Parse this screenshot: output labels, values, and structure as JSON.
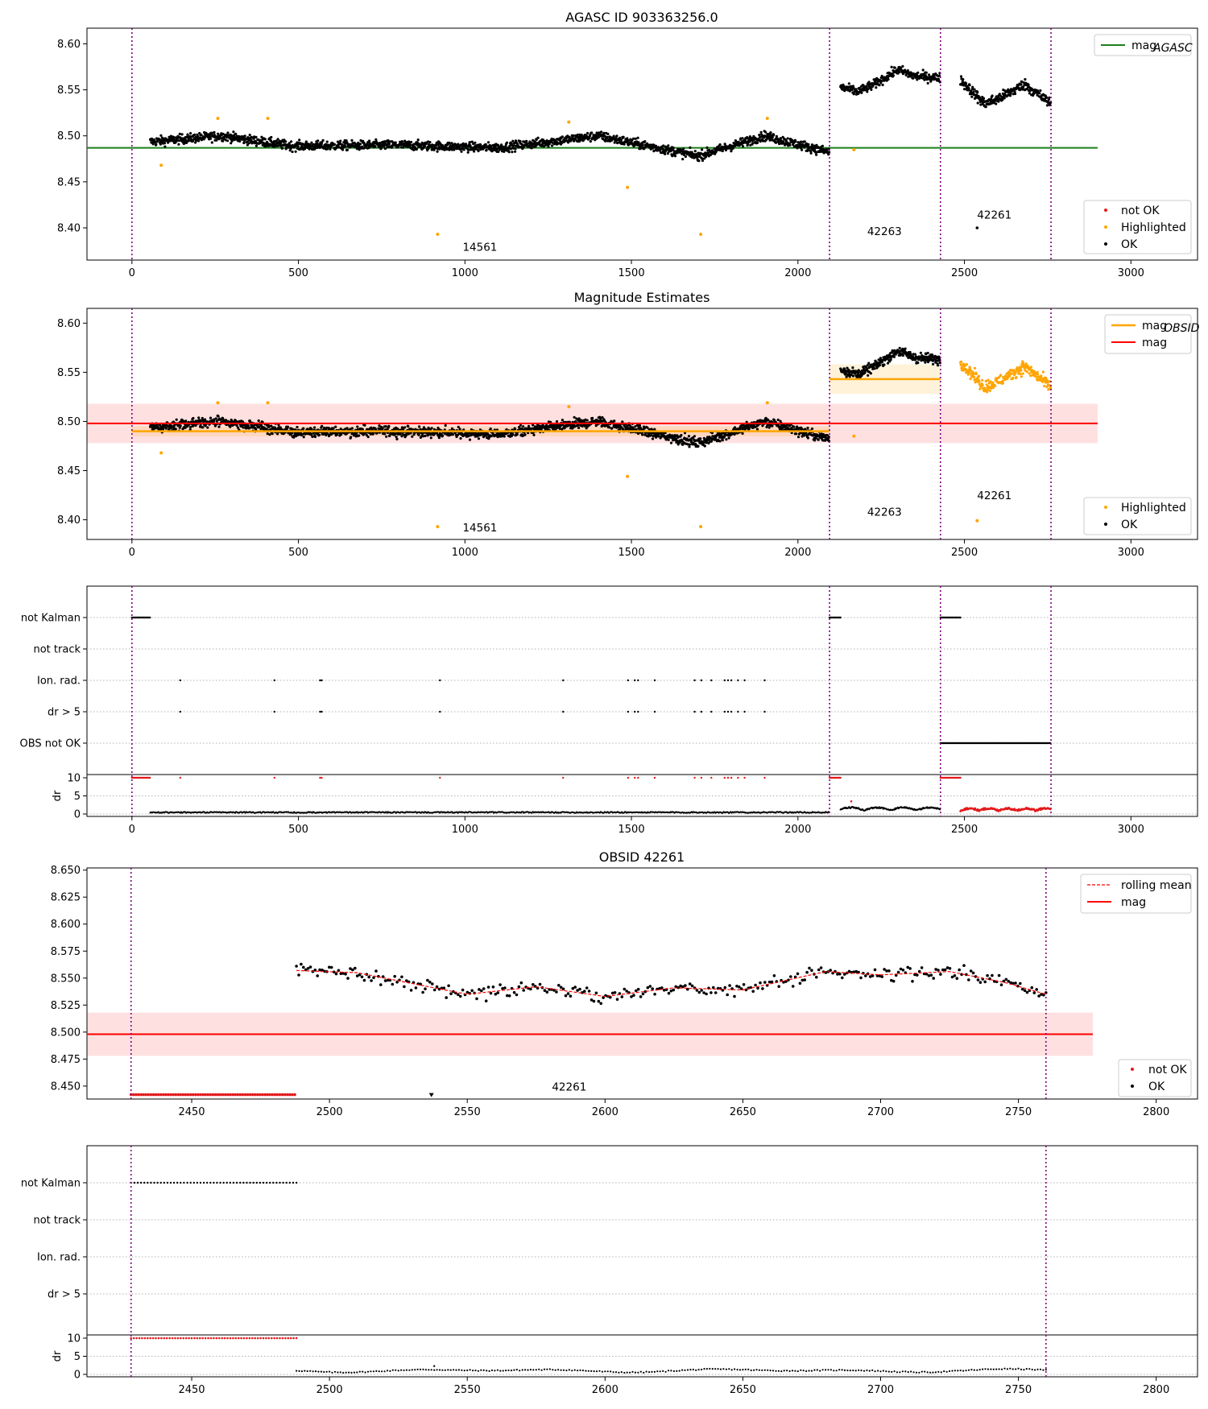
{
  "figure": {
    "panel1_title": "AGASC ID 903363256.0",
    "panel2_title": "Magnitude Estimates",
    "panel4_title": "OBSID 42261"
  },
  "colors": {
    "ok": "#000000",
    "not_ok": "#e31a1c",
    "highlighted": "#ffa500",
    "mag_agasc": "#1a7f1a",
    "mag": "#ff0000",
    "mag_obsid": "#ffa500",
    "obs_boundary": "#800080"
  },
  "chart_data": [
    {
      "type": "scatter",
      "title": "AGASC ID 903363256.0",
      "xlim": [
        -135,
        3200
      ],
      "ylim": [
        8.365,
        8.617
      ],
      "xticks": [
        0,
        500,
        1000,
        1500,
        2000,
        2500,
        3000
      ],
      "yticks": [
        8.4,
        8.45,
        8.5,
        8.55,
        8.6
      ],
      "ytick_labels": [
        "8.40",
        "8.45",
        "8.50",
        "8.55",
        "8.60"
      ],
      "obs_boundaries": [
        0,
        2095,
        2428,
        2760
      ],
      "obs_labels": [
        {
          "text": "14561",
          "x": 1045,
          "y": 8.375
        },
        {
          "text": "42263",
          "x": 2260,
          "y": 8.392
        },
        {
          "text": "42261",
          "x": 2590,
          "y": 8.41
        }
      ],
      "mag_agasc": {
        "value": 8.487,
        "x_range": [
          -135,
          2900
        ]
      },
      "segments": [
        {
          "x": [
            55,
            2095
          ],
          "waves": [
            [
              0.492,
              0
            ],
            [
              0.5,
              270
            ],
            [
              0.489,
              480
            ],
            [
              0.49,
              800
            ],
            [
              0.487,
              1100
            ],
            [
              0.5,
              1400
            ],
            [
              0.478,
              1700
            ],
            [
              0.5,
              1900
            ],
            [
              0.482,
              2095
            ]
          ],
          "scatter": 0.005
        },
        {
          "x": [
            2128,
            2428
          ],
          "waves": [
            [
              0.553,
              2128
            ],
            [
              0.548,
              2180
            ],
            [
              0.556,
              2230
            ],
            [
              0.572,
              2300
            ],
            [
              0.565,
              2350
            ],
            [
              0.563,
              2428
            ]
          ],
          "scatter": 0.005
        },
        {
          "x": [
            2488,
            2760
          ],
          "waves": [
            [
              0.561,
              2488
            ],
            [
              0.535,
              2560
            ],
            [
              0.54,
              2600
            ],
            [
              0.556,
              2680
            ],
            [
              0.535,
              2760
            ]
          ],
          "scatter": 0.006
        }
      ],
      "highlighted_points": [
        {
          "x": 88,
          "y": 8.468
        },
        {
          "x": 258,
          "y": 8.519
        },
        {
          "x": 408,
          "y": 8.519
        },
        {
          "x": 918,
          "y": 8.393
        },
        {
          "x": 1312,
          "y": 8.515
        },
        {
          "x": 1488,
          "y": 8.444
        },
        {
          "x": 1708,
          "y": 8.393
        },
        {
          "x": 1908,
          "y": 8.519
        },
        {
          "x": 2168,
          "y": 8.485
        }
      ],
      "isolated_ok_points": [
        {
          "x": 2538,
          "y": 8.4
        }
      ],
      "legend": {
        "position": "top-right",
        "lines": [
          {
            "label": "mag",
            "sub": "AGASC"
          }
        ]
      },
      "legend2": {
        "position": "bottom-right",
        "items": [
          "not OK",
          "Highlighted",
          "OK"
        ]
      }
    },
    {
      "type": "scatter",
      "title": "Magnitude Estimates",
      "xlim": [
        -135,
        3200
      ],
      "ylim": [
        8.38,
        8.615
      ],
      "xticks": [
        0,
        500,
        1000,
        1500,
        2000,
        2500,
        3000
      ],
      "yticks": [
        8.4,
        8.45,
        8.5,
        8.55,
        8.6
      ],
      "ytick_labels": [
        "8.40",
        "8.45",
        "8.50",
        "8.55",
        "8.60"
      ],
      "mag": {
        "value": 8.498,
        "band": [
          8.478,
          8.518
        ],
        "x_range": [
          -135,
          2900
        ]
      },
      "mag_obsid": [
        {
          "x_range": [
            0,
            2095
          ],
          "value": 8.49,
          "band": [
            8.485,
            8.495
          ]
        },
        {
          "x_range": [
            2095,
            2428
          ],
          "value": 8.543,
          "band": [
            8.528,
            8.558
          ]
        }
      ],
      "obs_labels": [
        {
          "text": "14561",
          "x": 1045,
          "y": 8.388
        },
        {
          "text": "42263",
          "x": 2260,
          "y": 8.404
        },
        {
          "text": "42261",
          "x": 2590,
          "y": 8.421
        }
      ],
      "legend": {
        "position": "top-right",
        "lines": [
          {
            "label": "mag",
            "sub": "OBSID"
          },
          {
            "label": "mag",
            "sub": ""
          }
        ]
      },
      "legend2": {
        "position": "bottom-right",
        "items": [
          "Highlighted",
          "OK"
        ]
      }
    },
    {
      "type": "scatter",
      "title": "",
      "xlim": [
        -135,
        3200
      ],
      "flag_rows": [
        "not Kalman",
        "not track",
        "Ion. rad.",
        "dr > 5",
        "OBS not OK"
      ],
      "flag_spans": {
        "not Kalman": [
          [
            0,
            55
          ],
          [
            2095,
            2128
          ],
          [
            2428,
            2488
          ]
        ],
        "OBS not OK": [
          [
            2428,
            2760
          ]
        ]
      },
      "flag_points": [
        145,
        428,
        565,
        570,
        925,
        1295,
        1490,
        1510,
        1520,
        1570,
        1690,
        1710,
        1740,
        1780,
        1790,
        1800,
        1820,
        1840,
        1900
      ],
      "dr_ylim": [
        0,
        10
      ],
      "dr_yticks": [
        0,
        5,
        10
      ],
      "dr_ylabel": "dr",
      "xticks": [
        0,
        500,
        1000,
        1500,
        2000,
        2500,
        3000
      ]
    },
    {
      "type": "scatter",
      "title": "OBSID 42261",
      "xlim": [
        2412,
        2815
      ],
      "ylim": [
        8.438,
        8.652
      ],
      "xticks": [
        2450,
        2500,
        2550,
        2600,
        2650,
        2700,
        2750,
        2800
      ],
      "yticks": [
        8.45,
        8.475,
        8.5,
        8.525,
        8.55,
        8.575,
        8.6,
        8.625,
        8.65
      ],
      "ytick_labels": [
        "8.450",
        "8.475",
        "8.500",
        "8.525",
        "8.550",
        "8.575",
        "8.600",
        "8.625",
        "8.650"
      ],
      "obs_boundaries": [
        2428,
        2760
      ],
      "mag": {
        "value": 8.498,
        "band": [
          8.478,
          8.518
        ],
        "x_end": 2777
      },
      "obs_label": {
        "text": "42261",
        "x": 2587,
        "y": 8.446
      },
      "not_ok_range": [
        2428,
        2488
      ],
      "not_ok_y": 8.442,
      "isolated_marker": {
        "x": 2537,
        "y": 8.442
      },
      "rolling_mean": [
        [
          2488,
          8.557
        ],
        [
          2510,
          8.555
        ],
        [
          2530,
          8.545
        ],
        [
          2550,
          8.535
        ],
        [
          2575,
          8.542
        ],
        [
          2600,
          8.533
        ],
        [
          2625,
          8.541
        ],
        [
          2650,
          8.539
        ],
        [
          2680,
          8.556
        ],
        [
          2700,
          8.553
        ],
        [
          2725,
          8.556
        ],
        [
          2745,
          8.546
        ],
        [
          2760,
          8.535
        ]
      ],
      "legend": {
        "position": "top-right",
        "lines": [
          {
            "label": "rolling mean"
          },
          {
            "label": "mag"
          }
        ]
      },
      "legend2": {
        "position": "bottom-right",
        "items": [
          "not OK",
          "OK"
        ]
      }
    },
    {
      "type": "scatter",
      "title": "",
      "xlim": [
        2412,
        2815
      ],
      "flag_rows": [
        "not Kalman",
        "not track",
        "Ion. rad.",
        "dr > 5"
      ],
      "flag_spans": {
        "not Kalman": [
          [
            2428,
            2488
          ]
        ]
      },
      "dr_ylim": [
        0,
        10
      ],
      "dr_yticks": [
        0,
        5,
        10
      ],
      "dr_ylabel": "dr",
      "xticks": [
        2450,
        2500,
        2550,
        2600,
        2650,
        2700,
        2750,
        2800
      ]
    }
  ]
}
